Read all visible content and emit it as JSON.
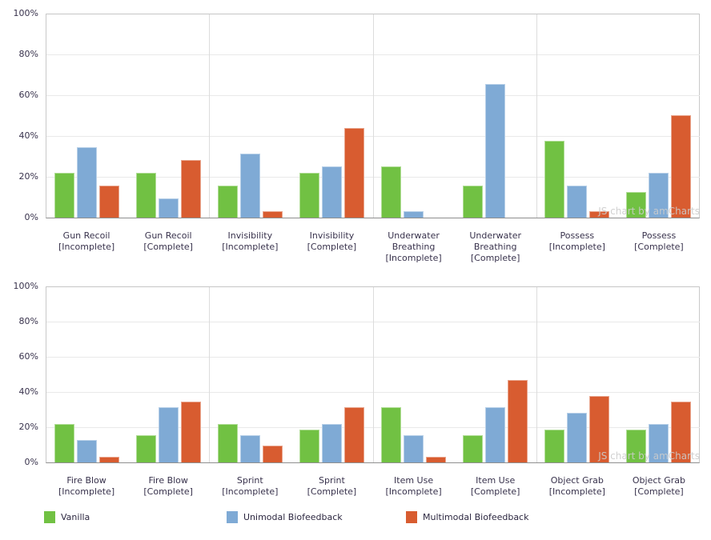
{
  "watermark": {
    "text": "JS chart by amCharts"
  },
  "colors": {
    "vanilla": "#71C143",
    "unimodal": "#7FAAD5",
    "multimodal": "#D85C30",
    "grid": "#E9E9E9",
    "frame": "#C9C9C9",
    "axis": "#8F8F8F",
    "text": "#38324C",
    "watermark": "#CCCCCC"
  },
  "legend": {
    "items": [
      {
        "label": "Vanilla",
        "color": "#71C143"
      },
      {
        "label": "Unimodal Biofeedback",
        "color": "#7FAAD5"
      },
      {
        "label": "Multimodal Biofeedback",
        "color": "#D85C30"
      }
    ]
  },
  "chart_data": [
    {
      "type": "bar",
      "title": "",
      "categories": [
        "Gun Recoil\n[Incomplete]",
        "Gun Recoil\n[Complete]",
        "Invisibility\n[Incomplete]",
        "Invisibility\n[Complete]",
        "Underwater\nBreathing\n[Incomplete]",
        "Underwater\nBreathing\n[Complete]",
        "Possess\n[Incomplete]",
        "Possess\n[Complete]"
      ],
      "series": [
        {
          "name": "Vanilla",
          "color": "#71C143",
          "values": [
            21.9,
            21.9,
            15.6,
            21.9,
            25.0,
            15.6,
            37.5,
            12.5
          ]
        },
        {
          "name": "Unimodal Biofeedback",
          "color": "#7FAAD5",
          "values": [
            34.4,
            9.4,
            31.3,
            25.0,
            3.1,
            65.6,
            15.6,
            21.9
          ]
        },
        {
          "name": "Multimodal Biofeedback",
          "color": "#D85C30",
          "values": [
            15.6,
            28.1,
            3.1,
            43.8,
            0,
            0,
            3.1,
            50.0
          ]
        }
      ],
      "ylim": [
        0,
        100
      ],
      "yticks": [
        "0%",
        "20%",
        "40%",
        "60%",
        "80%",
        "100%"
      ],
      "grid": true,
      "legend_position": "none"
    },
    {
      "type": "bar",
      "title": "",
      "categories": [
        "Fire Blow\n[Incomplete]",
        "Fire Blow\n[Complete]",
        "Sprint\n[Incomplete]",
        "Sprint\n[Complete]",
        "Item Use\n[Incomplete]",
        "Item Use\n[Complete]",
        "Object Grab\n[Incomplete]",
        "Object Grab\n[Complete]"
      ],
      "series": [
        {
          "name": "Vanilla",
          "color": "#71C143",
          "values": [
            21.9,
            15.6,
            21.9,
            18.8,
            31.3,
            15.6,
            18.8,
            18.8
          ]
        },
        {
          "name": "Unimodal Biofeedback",
          "color": "#7FAAD5",
          "values": [
            12.5,
            31.3,
            15.6,
            21.9,
            15.6,
            31.3,
            28.1,
            21.9
          ]
        },
        {
          "name": "Multimodal Biofeedback",
          "color": "#D85C30",
          "values": [
            3.1,
            34.4,
            9.4,
            31.3,
            3.1,
            46.9,
            37.5,
            34.4
          ]
        }
      ],
      "ylim": [
        0,
        100
      ],
      "yticks": [
        "0%",
        "20%",
        "40%",
        "60%",
        "80%",
        "100%"
      ],
      "grid": true,
      "legend_position": "bottom"
    }
  ]
}
